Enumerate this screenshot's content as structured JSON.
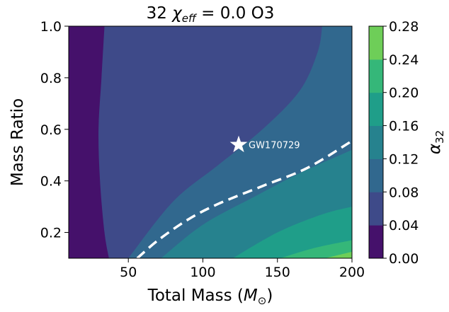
{
  "chart_data": {
    "type": "contour",
    "title": {
      "prefix": "32 ",
      "symbol": "χ",
      "subscript": "eff",
      "suffix": " = 0.0 O3"
    },
    "xlabel": {
      "text": "Total Mass (",
      "symbol": "M",
      "subscript": "⊙",
      "close": ")"
    },
    "ylabel": "Mass Ratio",
    "xlim": [
      10,
      200
    ],
    "ylim": [
      0.1,
      1.0
    ],
    "xticks": [
      50,
      100,
      150,
      200
    ],
    "yticks": [
      0.2,
      0.4,
      0.6,
      0.8,
      1.0
    ],
    "ytick_labels": [
      "0.2",
      "0.4",
      "0.6",
      "0.8",
      "1.0"
    ],
    "colorbar": {
      "label_symbol": "α",
      "label_subscript": "32",
      "levels": [
        0.0,
        0.04,
        0.08,
        0.12,
        0.16,
        0.2,
        0.24,
        0.28
      ],
      "tick_labels": [
        "0.00",
        "0.04",
        "0.08",
        "0.12",
        "0.16",
        "0.20",
        "0.24",
        "0.28"
      ],
      "colors": [
        "#45116b",
        "#3e4a89",
        "#31688e",
        "#26828e",
        "#1f9e89",
        "#35b779",
        "#6ece58",
        "#c8e020"
      ]
    },
    "contour_boundaries": [
      {
        "level": 0.04,
        "points": [
          [
            37,
            0.1
          ],
          [
            34,
            0.2
          ],
          [
            31,
            0.4
          ],
          [
            30,
            0.6
          ],
          [
            32,
            0.8
          ],
          [
            34,
            1.0
          ]
        ]
      },
      {
        "level": 0.08,
        "points": [
          [
            50,
            0.1
          ],
          [
            80,
            0.32
          ],
          [
            110,
            0.46
          ],
          [
            140,
            0.6
          ],
          [
            165,
            0.75
          ],
          [
            177,
            0.9
          ],
          [
            180,
            1.0
          ]
        ]
      },
      {
        "level": 0.12,
        "points": [
          [
            72,
            0.1
          ],
          [
            100,
            0.23
          ],
          [
            135,
            0.34
          ],
          [
            165,
            0.43
          ],
          [
            200,
            0.52
          ]
        ]
      },
      {
        "level": 0.16,
        "points": [
          [
            120,
            0.1
          ],
          [
            150,
            0.2
          ],
          [
            180,
            0.27
          ],
          [
            200,
            0.3
          ]
        ]
      },
      {
        "level": 0.2,
        "points": [
          [
            152,
            0.1
          ],
          [
            175,
            0.14
          ],
          [
            200,
            0.17
          ]
        ]
      },
      {
        "level": 0.24,
        "points": [
          [
            182,
            0.1
          ],
          [
            200,
            0.125
          ]
        ]
      }
    ],
    "dashed_curve": {
      "points": [
        [
          56,
          0.1
        ],
        [
          70,
          0.17
        ],
        [
          90,
          0.25
        ],
        [
          110,
          0.31
        ],
        [
          140,
          0.38
        ],
        [
          170,
          0.45
        ],
        [
          200,
          0.555
        ]
      ]
    },
    "annotation": {
      "label": "GW170729",
      "x": 124,
      "y": 0.54,
      "marker": "star"
    }
  }
}
